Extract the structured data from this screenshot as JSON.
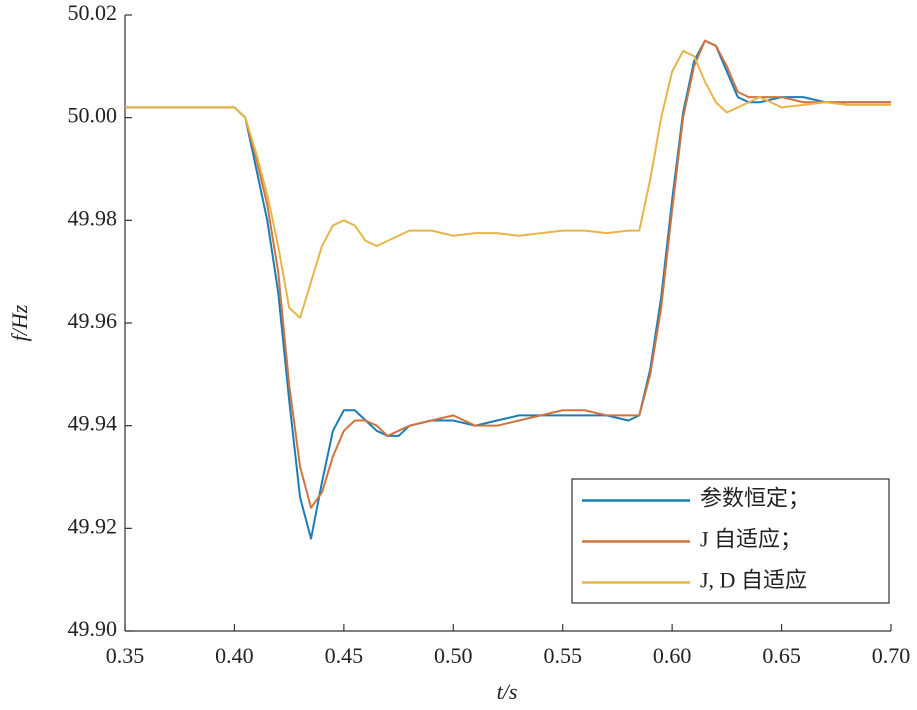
{
  "chart_data": {
    "type": "line",
    "xlabel": "t/s",
    "ylabel": "f/Hz",
    "x": [
      0.35,
      0.36,
      0.37,
      0.38,
      0.39,
      0.4,
      0.405,
      0.41,
      0.415,
      0.42,
      0.425,
      0.43,
      0.435,
      0.44,
      0.445,
      0.45,
      0.455,
      0.46,
      0.465,
      0.47,
      0.475,
      0.48,
      0.49,
      0.5,
      0.51,
      0.52,
      0.53,
      0.54,
      0.55,
      0.56,
      0.57,
      0.58,
      0.585,
      0.59,
      0.595,
      0.6,
      0.605,
      0.61,
      0.615,
      0.62,
      0.625,
      0.63,
      0.635,
      0.64,
      0.65,
      0.66,
      0.67,
      0.68,
      0.69,
      0.7
    ],
    "series": [
      {
        "name": "参数恒定；",
        "color": "#1a7db5",
        "values": [
          50.002,
          50.002,
          50.002,
          50.002,
          50.002,
          50.002,
          50.0,
          49.99,
          49.98,
          49.966,
          49.945,
          49.926,
          49.918,
          49.929,
          49.939,
          49.943,
          49.943,
          49.941,
          49.939,
          49.938,
          49.938,
          49.94,
          49.941,
          49.941,
          49.94,
          49.941,
          49.942,
          49.942,
          49.942,
          49.942,
          49.942,
          49.941,
          49.942,
          49.951,
          49.965,
          49.984,
          50.001,
          50.011,
          50.015,
          50.014,
          50.009,
          50.004,
          50.003,
          50.003,
          50.004,
          50.004,
          50.003,
          50.003,
          50.003,
          50.003
        ]
      },
      {
        "name": "J 自适应；",
        "color": "#d0733f",
        "values": [
          50.002,
          50.002,
          50.002,
          50.002,
          50.002,
          50.002,
          50.0,
          49.992,
          49.983,
          49.97,
          49.948,
          49.932,
          49.924,
          49.927,
          49.934,
          49.939,
          49.941,
          49.941,
          49.94,
          49.938,
          49.939,
          49.94,
          49.941,
          49.942,
          49.94,
          49.94,
          49.941,
          49.942,
          49.943,
          49.943,
          49.942,
          49.942,
          49.942,
          49.95,
          49.963,
          49.982,
          50.0,
          50.01,
          50.015,
          50.014,
          50.01,
          50.005,
          50.004,
          50.004,
          50.004,
          50.003,
          50.003,
          50.003,
          50.003,
          50.003
        ]
      },
      {
        "name": "J, D 自适应",
        "color": "#e6b54a",
        "values": [
          50.002,
          50.002,
          50.002,
          50.002,
          50.002,
          50.002,
          50.0,
          49.993,
          49.985,
          49.975,
          49.963,
          49.961,
          49.968,
          49.975,
          49.979,
          49.98,
          49.979,
          49.976,
          49.975,
          49.976,
          49.977,
          49.978,
          49.978,
          49.977,
          49.9775,
          49.9775,
          49.977,
          49.9775,
          49.978,
          49.978,
          49.9775,
          49.978,
          49.978,
          49.988,
          50.0,
          50.009,
          50.013,
          50.012,
          50.007,
          50.003,
          50.001,
          50.002,
          50.003,
          50.004,
          50.002,
          50.0025,
          50.003,
          50.0025,
          50.0025,
          50.0025
        ]
      }
    ],
    "xlim": [
      0.35,
      0.7
    ],
    "xticks": [
      0.35,
      {
        "value": 0.4,
        "label": "0.40"
      },
      0.45,
      {
        "value": 0.5,
        "label": "0.50"
      },
      0.55,
      {
        "value": 0.6,
        "label": "0.60"
      },
      0.65,
      {
        "value": 0.7,
        "label": "0.70"
      }
    ],
    "ylim": [
      49.9,
      50.02
    ],
    "yticks": [
      {
        "value": 49.9,
        "label": "49.90"
      },
      49.92,
      49.94,
      49.96,
      49.98,
      {
        "value": 50,
        "label": "50.00"
      },
      50.02
    ],
    "grid": false,
    "legend": "lower right"
  }
}
